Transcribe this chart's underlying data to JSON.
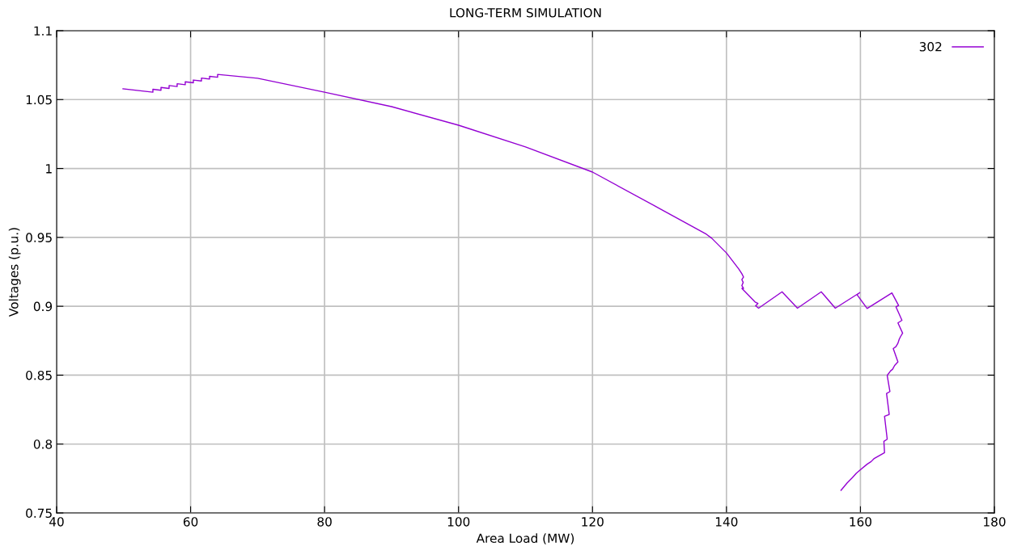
{
  "chart_data": {
    "type": "line",
    "title": "LONG-TERM SIMULATION",
    "xlabel": "Area Load (MW)",
    "ylabel": "Voltages (p.u.)",
    "xlim": [
      40,
      180
    ],
    "xticks": [
      40,
      60,
      80,
      100,
      120,
      140,
      160,
      180
    ],
    "ylim": [
      0.75,
      1.1
    ],
    "yticks": [
      {
        "value": 0.75,
        "label": "0.75"
      },
      {
        "value": 0.8,
        "label": "0.8"
      },
      {
        "value": 0.85,
        "label": "0.85"
      },
      {
        "value": 0.9,
        "label": "0.9"
      },
      {
        "value": 0.95,
        "label": "0.95"
      },
      {
        "value": 1,
        "label": "1"
      },
      {
        "value": 1.05,
        "label": "1.05"
      },
      {
        "value": 1.1,
        "label": "1.1"
      }
    ],
    "grid": true,
    "legend": "top right",
    "marker": "none",
    "line_style": "solid",
    "series": [
      {
        "name": "302",
        "color": "#9400d3",
        "x": [
          49.9,
          54.37,
          54.37,
          55.58,
          55.58,
          56.79,
          56.79,
          57.99,
          57.99,
          59.2,
          59.2,
          60.41,
          60.41,
          61.62,
          61.62,
          62.83,
          62.83,
          64.03,
          64.03,
          70,
          80,
          90,
          100,
          110,
          120,
          130,
          137,
          137.8,
          140,
          141.85,
          142.3,
          142.55,
          142.3,
          142.5,
          142.3,
          142.55,
          142.3,
          144.27,
          144.7,
          144.35,
          144.8,
          148.3,
          150.6,
          154.15,
          156.25,
          159.9,
          159.5,
          161.0,
          164.7,
          165.7,
          165.3,
          166.2,
          165.6,
          166.3,
          166.0,
          165.8,
          165.6,
          165.3,
          164.9,
          165.6,
          165.1,
          164.8,
          164.5,
          164.0,
          164.4,
          163.9,
          164.3,
          163.6,
          164.0,
          163.5,
          163.6,
          162.0,
          161.6,
          161.0,
          160.0,
          159.4,
          158.8,
          158.0,
          157.1
        ],
        "values": [
          1.0578,
          1.0554,
          1.0575,
          1.0568,
          1.0588,
          1.0581,
          1.0602,
          1.0595,
          1.0615,
          1.0608,
          1.0629,
          1.0622,
          1.0642,
          1.0635,
          1.0656,
          1.0649,
          1.0669,
          1.0662,
          1.0683,
          1.0655,
          1.0554,
          1.0449,
          1.0314,
          1.0156,
          0.9974,
          0.971,
          0.9523,
          0.9494,
          0.9387,
          0.927,
          0.9236,
          0.9212,
          0.9193,
          0.9173,
          0.915,
          0.913,
          0.913,
          0.9031,
          0.902,
          0.9004,
          0.8986,
          0.9105,
          0.8986,
          0.9105,
          0.8986,
          0.9099,
          0.9084,
          0.8984,
          0.9097,
          0.9006,
          0.8996,
          0.8898,
          0.8879,
          0.8805,
          0.8781,
          0.8762,
          0.8732,
          0.8707,
          0.8693,
          0.8596,
          0.857,
          0.8543,
          0.8531,
          0.8498,
          0.8381,
          0.8367,
          0.8215,
          0.8201,
          0.8035,
          0.802,
          0.7938,
          0.7893,
          0.7873,
          0.7854,
          0.7814,
          0.7789,
          0.7756,
          0.7717,
          0.7664
        ]
      }
    ]
  }
}
